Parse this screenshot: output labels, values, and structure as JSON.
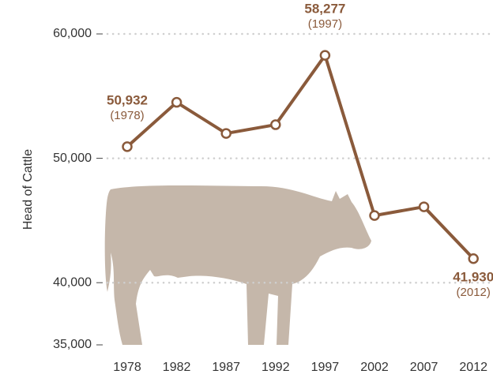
{
  "chart_data": {
    "type": "line",
    "y_label": "Head of Cattle",
    "categories": [
      "1978",
      "1982",
      "1987",
      "1992",
      "1997",
      "2002",
      "2007",
      "2012"
    ],
    "values": [
      50932,
      54500,
      52000,
      52700,
      58277,
      45400,
      46100,
      41930
    ],
    "value_labels": [
      "50,932",
      null,
      null,
      null,
      "58,277",
      null,
      null,
      "41,930"
    ],
    "annotations": [
      "(1978)",
      "(1997)",
      "(2012)"
    ],
    "color": "#8a5a3b",
    "ylim": [
      35000,
      60000
    ],
    "yticks": [
      {
        "value": 35000,
        "label": "35,000"
      },
      {
        "value": 40000,
        "label": "40,000"
      },
      {
        "value": 50000,
        "label": "50,000"
      },
      {
        "value": 60000,
        "label": "60,000"
      }
    ],
    "grid": true
  }
}
